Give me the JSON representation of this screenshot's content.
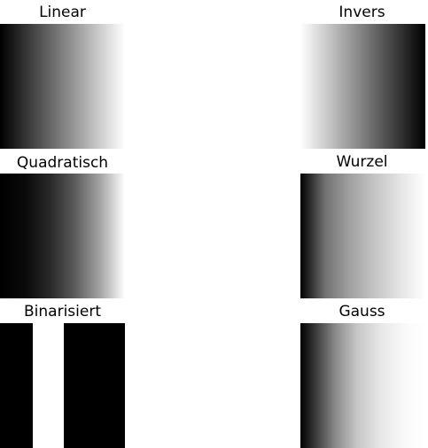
{
  "panels": {
    "linear": {
      "title": "Linear"
    },
    "invers": {
      "title": "Invers"
    },
    "quadratisch": {
      "title": "Quadratisch"
    },
    "wurzel": {
      "title": "Wurzel"
    },
    "binarisiert": {
      "title": "Binarisiert"
    },
    "gauss": {
      "title": "Gauss"
    }
  }
}
